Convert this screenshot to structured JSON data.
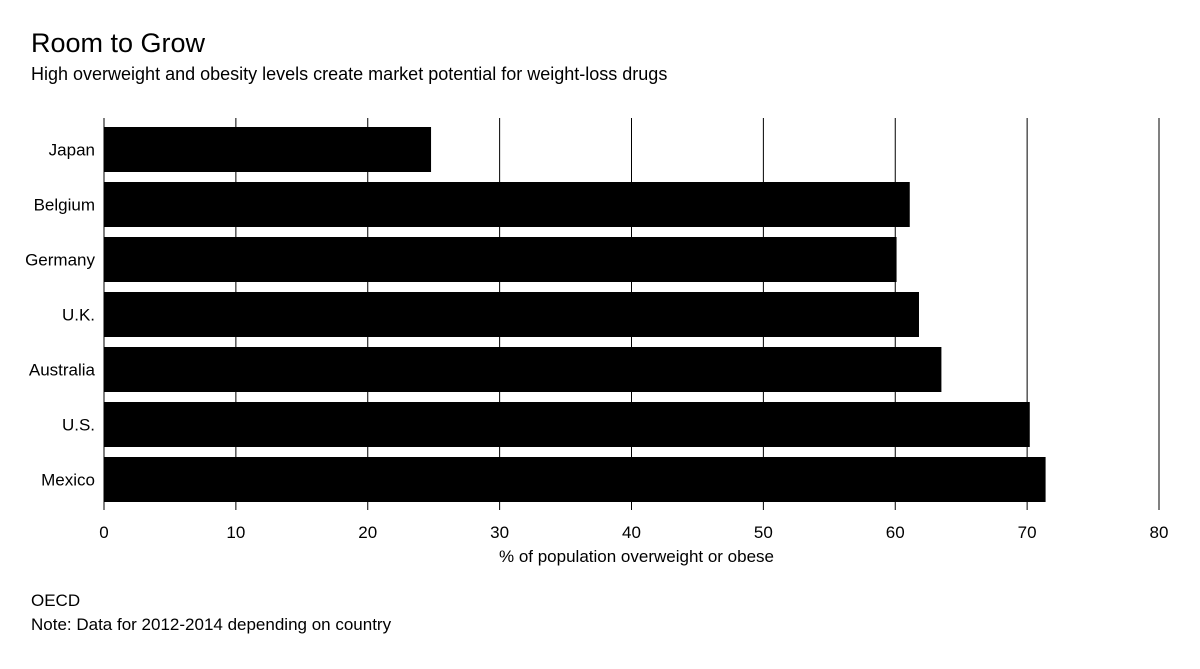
{
  "header": {
    "title": "Room to Grow",
    "subtitle": "High overweight and obesity levels create market potential for weight-loss drugs"
  },
  "footer": {
    "source": "OECD",
    "note": "Note: Data for 2012-2014 depending on country"
  },
  "chart_data": {
    "type": "bar",
    "orientation": "horizontal",
    "title": "Room to Grow",
    "subtitle": "High overweight and obesity levels create market potential for weight-loss drugs",
    "categories": [
      "Japan",
      "Belgium",
      "Germany",
      "U.K.",
      "Australia",
      "U.S.",
      "Mexico"
    ],
    "values": [
      24.8,
      61.1,
      60.1,
      61.8,
      63.5,
      70.2,
      71.4
    ],
    "xlabel": "% of population overweight or obese",
    "ylabel": "",
    "xlim": [
      0,
      80
    ],
    "xticks": [
      0,
      10,
      20,
      30,
      40,
      50,
      60,
      70,
      80
    ],
    "grid": "vertical",
    "legend": "none",
    "bar_color": "#000000",
    "gridline_color": "#000000"
  }
}
